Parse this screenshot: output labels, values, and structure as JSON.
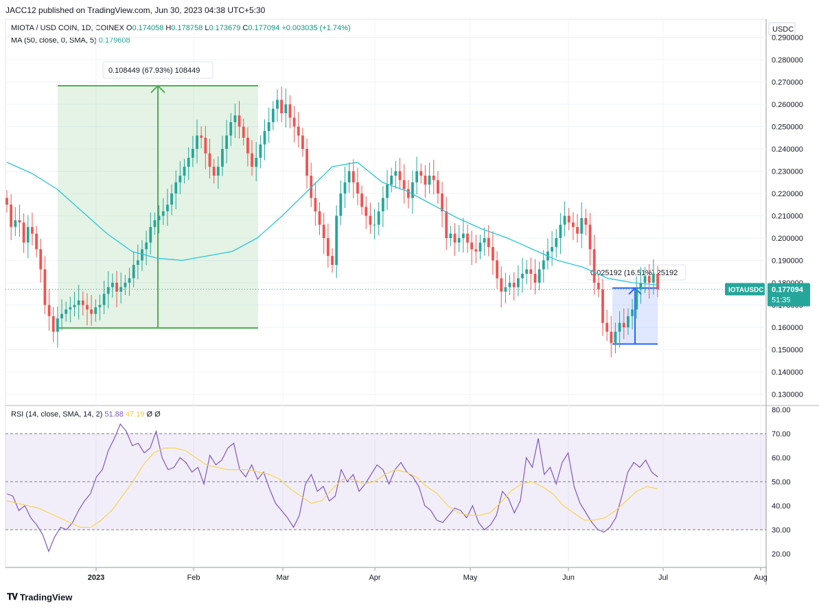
{
  "header": {
    "published": "JACC12 published on TradingView.com, Jun 30, 2023 04:38 UTC+5:30"
  },
  "legend": {
    "symbol": "MIOTA / USD COIN, 1D, COINEX",
    "o_label": "O",
    "o": "0.174058",
    "h_label": "H",
    "h": "0.178758",
    "l_label": "L",
    "l": "0.173679",
    "c_label": "C",
    "c": "0.177094",
    "change": "+0.003035 (+1.74%)",
    "ma_label": "MA (50, close, 0, SMA, 5)",
    "ma_value": "0.179608",
    "rsi_label": "RSI (14, close, SMA, 14, 2)",
    "rsi_value": "51.88",
    "rsi_ma_value": "47.19",
    "rsi_extra1": "Ø",
    "rsi_extra2": "Ø"
  },
  "price_scale": {
    "currency": "USDC",
    "ticks": [
      "0.290000",
      "0.280000",
      "0.270000",
      "0.260000",
      "0.250000",
      "0.240000",
      "0.230000",
      "0.220000",
      "0.210000",
      "0.200000",
      "0.190000",
      "0.180000",
      "0.170000",
      "0.160000",
      "0.150000",
      "0.140000",
      "0.130000"
    ],
    "last_label": "IOTAUSDC",
    "last_price": "0.177094",
    "countdown": "51:35"
  },
  "rsi_scale": {
    "ticks": [
      "80.00",
      "70.00",
      "60.00",
      "50.00",
      "40.00",
      "30.00",
      "20.00"
    ]
  },
  "time_axis": {
    "labels": [
      "2023",
      "Feb",
      "Mar",
      "Apr",
      "May",
      "Jun",
      "Jul",
      "Aug"
    ]
  },
  "measures": {
    "green_text": "0.108449 (67.93%) 108449",
    "blue_text": "0.025192 (16.51%) 25192"
  },
  "footer": {
    "brand": "TradingView"
  },
  "colors": {
    "up": "#26a69a",
    "down": "#ef5350",
    "ma": "#26c6da",
    "rsi": "#7e57c2",
    "rsi_ma": "#f9d44f",
    "green_box": "#4caf50",
    "blue_box": "#2962ff"
  },
  "chart_data": [
    {
      "type": "candlestick",
      "title": "MIOTA / USD COIN, 1D, COINEX",
      "ylim": [
        0.13,
        0.29
      ],
      "x_range": [
        "2022-12-02",
        "2023-07-31"
      ],
      "x_labels": [
        "2023",
        "Feb",
        "Mar",
        "Apr",
        "May",
        "Jun",
        "Jul",
        "Aug"
      ],
      "series": [
        {
          "name": "close",
          "values": [
            0.215,
            0.205,
            0.208,
            0.207,
            0.198,
            0.205,
            0.202,
            0.195,
            0.186,
            0.17,
            0.165,
            0.158,
            0.164,
            0.166,
            0.168,
            0.169,
            0.17,
            0.172,
            0.17,
            0.168,
            0.166,
            0.169,
            0.17,
            0.175,
            0.178,
            0.18,
            0.176,
            0.178,
            0.18,
            0.182,
            0.188,
            0.19,
            0.195,
            0.198,
            0.205,
            0.208,
            0.21,
            0.212,
            0.215,
            0.22,
            0.225,
            0.228,
            0.232,
            0.236,
            0.24,
            0.246,
            0.245,
            0.238,
            0.232,
            0.228,
            0.232,
            0.24,
            0.246,
            0.252,
            0.255,
            0.25,
            0.245,
            0.238,
            0.232,
            0.236,
            0.242,
            0.248,
            0.252,
            0.258,
            0.262,
            0.256,
            0.26,
            0.254,
            0.25,
            0.246,
            0.24,
            0.228,
            0.218,
            0.212,
            0.206,
            0.2,
            0.192,
            0.188,
            0.21,
            0.22,
            0.225,
            0.23,
            0.225,
            0.22,
            0.214,
            0.21,
            0.206,
            0.206,
            0.212,
            0.218,
            0.224,
            0.228,
            0.23,
            0.226,
            0.222,
            0.218,
            0.225,
            0.23,
            0.228,
            0.224,
            0.228,
            0.226,
            0.22,
            0.212,
            0.2,
            0.202,
            0.198,
            0.2,
            0.202,
            0.198,
            0.195,
            0.194,
            0.198,
            0.2,
            0.196,
            0.19,
            0.182,
            0.176,
            0.178,
            0.18,
            0.178,
            0.182,
            0.184,
            0.186,
            0.184,
            0.18,
            0.186,
            0.19,
            0.194,
            0.196,
            0.2,
            0.206,
            0.21,
            0.207,
            0.205,
            0.202,
            0.209,
            0.206,
            0.195,
            0.18,
            0.177,
            0.162,
            0.158,
            0.153,
            0.158,
            0.162,
            0.16,
            0.165,
            0.168,
            0.177,
            0.18,
            0.183,
            0.18,
            0.184,
            0.177
          ]
        },
        {
          "name": "MA (50, close, 0, SMA, 5)",
          "values": [
            0.234,
            0.229,
            0.222,
            0.212,
            0.202,
            0.194,
            0.191,
            0.19,
            0.192,
            0.194,
            0.2,
            0.21,
            0.221,
            0.232,
            0.234,
            0.225,
            0.221,
            0.215,
            0.209,
            0.204,
            0.2,
            0.195,
            0.19,
            0.187,
            0.182,
            0.18,
            0.179
          ]
        }
      ]
    },
    {
      "type": "line",
      "title": "RSI (14, close, SMA, 14, 2)",
      "ylim": [
        15,
        85
      ],
      "series": [
        {
          "name": "RSI",
          "values": [
            45,
            44,
            38,
            40,
            35,
            32,
            28,
            21,
            27,
            31,
            30,
            33,
            38,
            42,
            45,
            52,
            55,
            63,
            68,
            74,
            71,
            65,
            66,
            62,
            64,
            71,
            60,
            55,
            56,
            60,
            58,
            54,
            56,
            49,
            61,
            57,
            59,
            64,
            66,
            55,
            52,
            57,
            51,
            54,
            47,
            41,
            38,
            35,
            31,
            36,
            49,
            53,
            46,
            48,
            42,
            44,
            55,
            50,
            53,
            46,
            49,
            53,
            57,
            55,
            49,
            55,
            58,
            54,
            52,
            48,
            40,
            38,
            34,
            33,
            36,
            39,
            38,
            35,
            40,
            33,
            30,
            32,
            36,
            46,
            43,
            37,
            42,
            60,
            56,
            68,
            53,
            56,
            49,
            58,
            62,
            48,
            41,
            37,
            33,
            30,
            29,
            31,
            35,
            44,
            54,
            58,
            56,
            59,
            54,
            52
          ]
        },
        {
          "name": "RSI-based MA",
          "values": [
            42,
            41,
            40,
            39,
            37,
            35,
            33,
            31,
            31,
            34,
            38,
            44,
            50,
            57,
            62,
            64,
            64,
            63,
            60,
            57,
            56,
            55,
            55,
            55,
            54,
            53,
            51,
            47,
            44,
            41,
            42,
            47,
            51,
            51,
            49,
            50,
            53,
            55,
            54,
            52,
            48,
            45,
            40,
            37,
            36,
            36,
            37,
            41,
            46,
            49,
            50,
            48,
            45,
            40,
            37,
            34,
            34,
            35,
            38,
            42,
            46,
            48,
            47
          ]
        }
      ]
    }
  ]
}
